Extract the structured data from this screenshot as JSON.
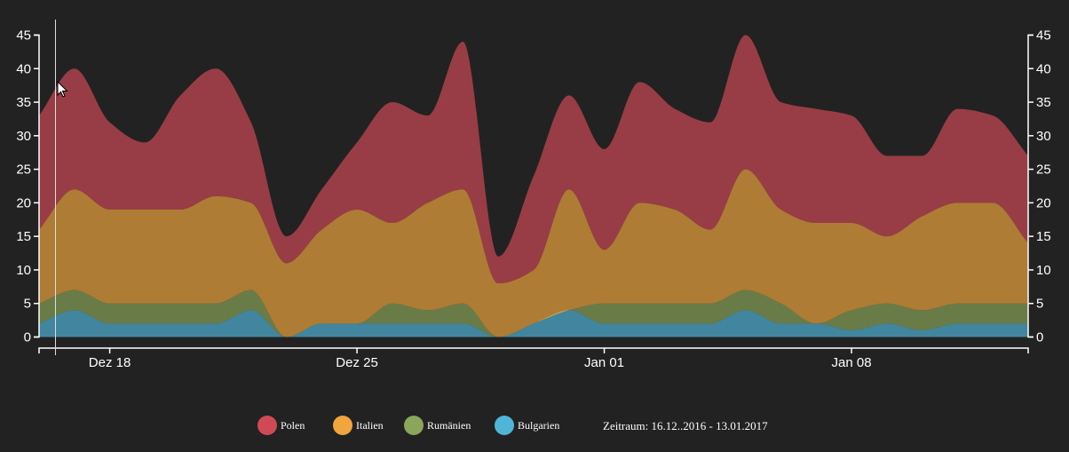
{
  "chart_data": {
    "type": "area",
    "stacked": true,
    "x": [
      "2016-12-16",
      "2016-12-17",
      "2016-12-18",
      "2016-12-19",
      "2016-12-20",
      "2016-12-21",
      "2016-12-22",
      "2016-12-23",
      "2016-12-24",
      "2016-12-25",
      "2016-12-26",
      "2016-12-27",
      "2016-12-28",
      "2016-12-29",
      "2016-12-30",
      "2016-12-31",
      "2017-01-01",
      "2017-01-02",
      "2017-01-03",
      "2017-01-04",
      "2017-01-05",
      "2017-01-06",
      "2017-01-07",
      "2017-01-08",
      "2017-01-09",
      "2017-01-10",
      "2017-01-11",
      "2017-01-12",
      "2017-01-13"
    ],
    "series": [
      {
        "name": "Bulgarien",
        "color": "#4fb6d8",
        "values": [
          2,
          4,
          2,
          2,
          2,
          2,
          4,
          0,
          2,
          2,
          2,
          2,
          2,
          0,
          2,
          4,
          2,
          2,
          2,
          2,
          4,
          2,
          2,
          1,
          2,
          1,
          2,
          2,
          2
        ]
      },
      {
        "name": "Rumänien",
        "color": "#8aa65a",
        "values": [
          3,
          3,
          3,
          3,
          3,
          3,
          3,
          0,
          0,
          0,
          3,
          2,
          3,
          0,
          0,
          0,
          3,
          3,
          3,
          3,
          3,
          3,
          0,
          3,
          3,
          3,
          3,
          3,
          3
        ]
      },
      {
        "name": "Italien",
        "color": "#f0a63c",
        "values": [
          11,
          15,
          14,
          14,
          14,
          16,
          13,
          11,
          14,
          17,
          12,
          16,
          17,
          8,
          8,
          18,
          8,
          15,
          14,
          11,
          18,
          14,
          15,
          13,
          10,
          14,
          15,
          15,
          9
        ]
      },
      {
        "name": "Polen",
        "color": "#d04a55",
        "values": [
          17,
          18,
          13,
          10,
          17,
          19,
          12,
          4,
          6,
          10,
          18,
          13,
          22,
          4,
          14,
          14,
          15,
          18,
          15,
          16,
          20,
          16,
          17,
          16,
          12,
          9,
          14,
          13,
          13
        ]
      }
    ],
    "x_ticks": [
      {
        "date": "2016-12-18",
        "label": "Dez 18"
      },
      {
        "date": "2016-12-25",
        "label": "Dez 25"
      },
      {
        "date": "2017-01-01",
        "label": "Jan 01"
      },
      {
        "date": "2017-01-08",
        "label": "Jan 08"
      }
    ],
    "y_ticks": [
      "0",
      "5",
      "10",
      "15",
      "20",
      "25",
      "30",
      "35",
      "40",
      "45"
    ],
    "ylim": [
      0,
      45
    ],
    "grid": false,
    "legend_position": "bottom-center"
  },
  "legend": {
    "items": [
      {
        "label": "Polen",
        "color": "#d04a55"
      },
      {
        "label": "Italien",
        "color": "#f0a63c"
      },
      {
        "label": "Rumänien",
        "color": "#8aa65a"
      },
      {
        "label": "Bulgarien",
        "color": "#4fb6d8"
      }
    ],
    "period_text": "Zeitraum: 16.12..2016 - 13.01.2017"
  },
  "colors": {
    "background": "#222222",
    "axis": "#ffffff",
    "cursor_line": "#dddddd"
  }
}
